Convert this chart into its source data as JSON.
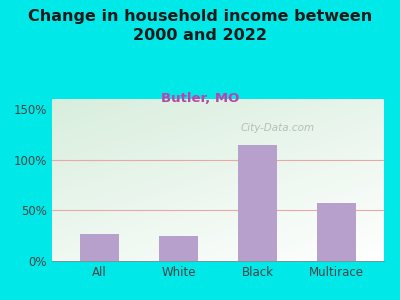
{
  "title": "Change in household income between\n2000 and 2022",
  "subtitle": "Butler, MO",
  "categories": [
    "All",
    "White",
    "Black",
    "Multirace"
  ],
  "values": [
    27,
    25,
    115,
    57
  ],
  "bar_color": "#b8a0cc",
  "background_color": "#00e8e8",
  "plot_bg_color_topleft": "#d8eedd",
  "plot_bg_color_white": "#ffffff",
  "title_fontsize": 11.5,
  "subtitle_fontsize": 9.5,
  "ylabel_ticks": [
    0,
    50,
    100,
    150
  ],
  "grid_ticks": [
    50,
    100
  ],
  "ylim": [
    0,
    160
  ],
  "watermark": "City-Data.com",
  "grid_color": "#e8a8a8",
  "title_color": "#1a1a1a",
  "subtitle_color": "#bb44aa",
  "tick_color": "#444444"
}
